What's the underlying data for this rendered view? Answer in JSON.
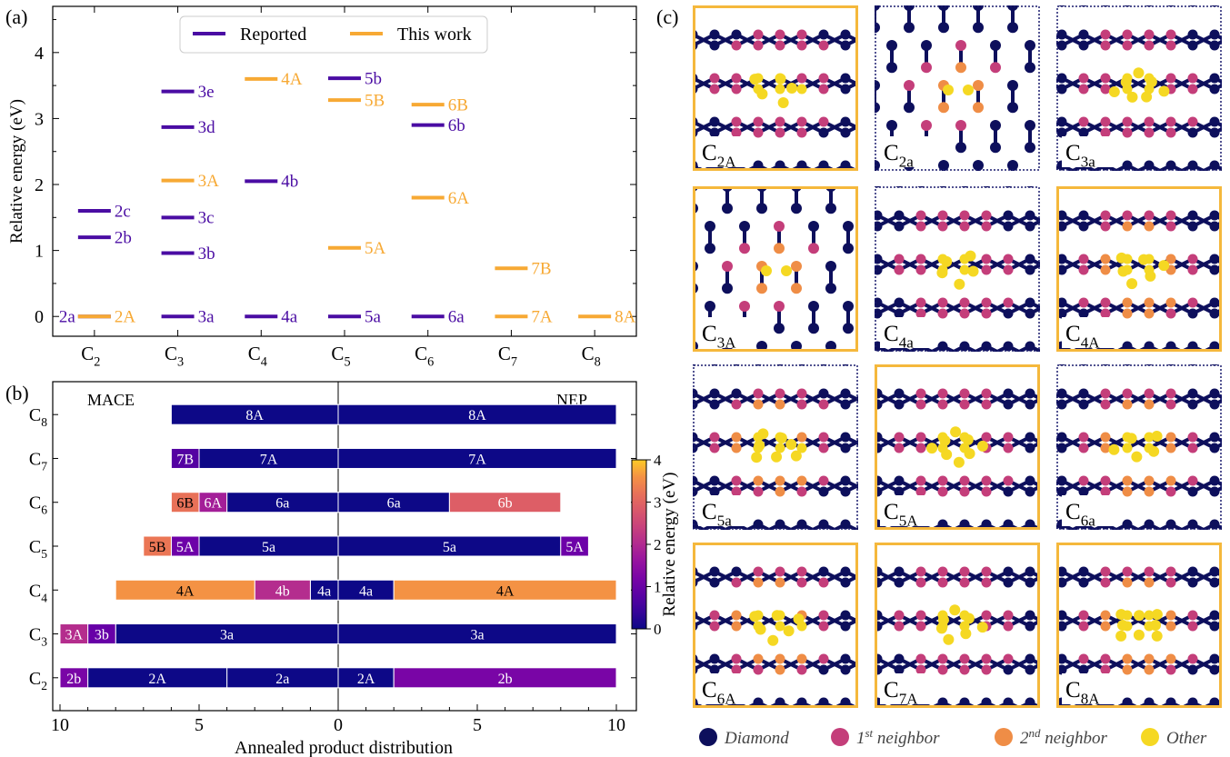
{
  "colors": {
    "reported": "#4a0ca3",
    "this_work": "#f7a934",
    "diamond": "#0d0f5c",
    "first_neighbor": "#c43e7a",
    "second_neighbor": "#ef8d46",
    "other": "#f5d823",
    "frame_this_work": "#f5b83c",
    "frame_reported": "#1a1c6e"
  },
  "panel_labels": {
    "a": "(a)",
    "b": "(b)",
    "c": "(c)"
  },
  "chart_data": [
    {
      "type": "scatter",
      "panel": "(a)",
      "ylabel": "Relative energy (eV)",
      "categories": [
        "C2",
        "C3",
        "C4",
        "C5",
        "C6",
        "C7",
        "C8"
      ],
      "category_labels": [
        [
          "C",
          "2"
        ],
        [
          "C",
          "3"
        ],
        [
          "C",
          "4"
        ],
        [
          "C",
          "5"
        ],
        [
          "C",
          "6"
        ],
        [
          "C",
          "7"
        ],
        [
          "C",
          "8"
        ]
      ],
      "ylim": [
        -0.3,
        4.7
      ],
      "yticks": [
        0,
        1,
        2,
        3,
        4
      ],
      "legend": {
        "placement": "top-center",
        "entries": [
          "Reported",
          "This work"
        ]
      },
      "series": [
        {
          "name": "Reported",
          "points": [
            {
              "x": "C2",
              "y": 0.0,
              "label": "2a"
            },
            {
              "x": "C2",
              "y": 1.2,
              "label": "2b"
            },
            {
              "x": "C2",
              "y": 1.6,
              "label": "2c"
            },
            {
              "x": "C3",
              "y": 0.0,
              "label": "3a"
            },
            {
              "x": "C3",
              "y": 0.96,
              "label": "3b"
            },
            {
              "x": "C3",
              "y": 1.5,
              "label": "3c"
            },
            {
              "x": "C3",
              "y": 2.87,
              "label": "3d"
            },
            {
              "x": "C3",
              "y": 3.41,
              "label": "3e"
            },
            {
              "x": "C4",
              "y": 0.0,
              "label": "4a"
            },
            {
              "x": "C4",
              "y": 2.05,
              "label": "4b"
            },
            {
              "x": "C5",
              "y": 0.0,
              "label": "5a"
            },
            {
              "x": "C5",
              "y": 3.61,
              "label": "5b"
            },
            {
              "x": "C6",
              "y": 0.0,
              "label": "6a"
            },
            {
              "x": "C6",
              "y": 2.9,
              "label": "6b"
            }
          ]
        },
        {
          "name": "This work",
          "points": [
            {
              "x": "C2",
              "y": 0.0,
              "label": "2A"
            },
            {
              "x": "C3",
              "y": 2.06,
              "label": "3A"
            },
            {
              "x": "C4",
              "y": 3.6,
              "label": "4A"
            },
            {
              "x": "C5",
              "y": 1.04,
              "label": "5A"
            },
            {
              "x": "C5",
              "y": 3.28,
              "label": "5B"
            },
            {
              "x": "C6",
              "y": 1.8,
              "label": "6A"
            },
            {
              "x": "C6",
              "y": 3.21,
              "label": "6B"
            },
            {
              "x": "C7",
              "y": 0.0,
              "label": "7A"
            },
            {
              "x": "C7",
              "y": 0.73,
              "label": "7B"
            },
            {
              "x": "C8",
              "y": 0.0,
              "label": "8A"
            }
          ]
        }
      ]
    },
    {
      "type": "bar",
      "panel": "(b)",
      "xlabel": "Annealed product distribution",
      "xticks": [
        10,
        5,
        0,
        5,
        10
      ],
      "left_title": "MACE",
      "right_title": "NEP",
      "colorbar": {
        "label": "Relative energy (eV)",
        "range": [
          0,
          4
        ],
        "ticks": [
          0,
          1,
          2,
          3,
          4
        ]
      },
      "rows": [
        {
          "category": [
            "C",
            "8"
          ],
          "mace": [
            {
              "label": "8A",
              "count": 6,
              "energy": 0.0
            }
          ],
          "nep": [
            {
              "label": "8A",
              "count": 10,
              "energy": 0.0
            }
          ]
        },
        {
          "category": [
            "C",
            "7"
          ],
          "mace": [
            {
              "label": "7A",
              "count": 5,
              "energy": 0.0
            },
            {
              "label": "7B",
              "count": 1,
              "energy": 0.73
            }
          ],
          "nep": [
            {
              "label": "7A",
              "count": 10,
              "energy": 0.0
            }
          ]
        },
        {
          "category": [
            "C",
            "6"
          ],
          "mace": [
            {
              "label": "6a",
              "count": 4,
              "energy": 0.0
            },
            {
              "label": "6A",
              "count": 1,
              "energy": 1.8
            },
            {
              "label": "6B",
              "count": 1,
              "energy": 3.21
            }
          ],
          "nep": [
            {
              "label": "6a",
              "count": 4,
              "energy": 0.0
            },
            {
              "label": "6b",
              "count": 4,
              "energy": 2.9
            }
          ]
        },
        {
          "category": [
            "C",
            "5"
          ],
          "mace": [
            {
              "label": "5a",
              "count": 5,
              "energy": 0.0
            },
            {
              "label": "5A",
              "count": 1,
              "energy": 1.04
            },
            {
              "label": "5B",
              "count": 1,
              "energy": 3.28
            }
          ],
          "nep": [
            {
              "label": "5a",
              "count": 8,
              "energy": 0.0
            },
            {
              "label": "5A",
              "count": 1,
              "energy": 1.04
            }
          ]
        },
        {
          "category": [
            "C",
            "4"
          ],
          "mace": [
            {
              "label": "4a",
              "count": 1,
              "energy": 0.0
            },
            {
              "label": "4b",
              "count": 2,
              "energy": 2.05
            },
            {
              "label": "4A",
              "count": 5,
              "energy": 3.6
            }
          ],
          "nep": [
            {
              "label": "4a",
              "count": 2,
              "energy": 0.0
            },
            {
              "label": "4A",
              "count": 8,
              "energy": 3.6
            }
          ]
        },
        {
          "category": [
            "C",
            "3"
          ],
          "mace": [
            {
              "label": "3a",
              "count": 8,
              "energy": 0.0
            },
            {
              "label": "3b",
              "count": 1,
              "energy": 0.96
            },
            {
              "label": "3A",
              "count": 1,
              "energy": 2.06
            }
          ],
          "nep": [
            {
              "label": "3a",
              "count": 10,
              "energy": 0.0
            }
          ]
        },
        {
          "category": [
            "C",
            "2"
          ],
          "mace": [
            {
              "label": "2a",
              "count": 4,
              "energy": 0.0
            },
            {
              "label": "2A",
              "count": 5,
              "energy": 0.0
            },
            {
              "label": "2b",
              "count": 1,
              "energy": 1.2
            }
          ],
          "nep": [
            {
              "label": "2A",
              "count": 2,
              "energy": 0.0
            },
            {
              "label": "2b",
              "count": 8,
              "energy": 1.2
            }
          ]
        }
      ]
    }
  ],
  "structures": [
    {
      "base": "C",
      "sub": "2A",
      "frame": "this_work",
      "lattice": "diamond"
    },
    {
      "base": "C",
      "sub": "2a",
      "frame": "reported",
      "lattice": "hex"
    },
    {
      "base": "C",
      "sub": "3a",
      "frame": "reported",
      "lattice": "diamond"
    },
    {
      "base": "C",
      "sub": "3A",
      "frame": "this_work",
      "lattice": "hex"
    },
    {
      "base": "C",
      "sub": "4a",
      "frame": "reported",
      "lattice": "diamond"
    },
    {
      "base": "C",
      "sub": "4A",
      "frame": "this_work",
      "lattice": "diamond"
    },
    {
      "base": "C",
      "sub": "5a",
      "frame": "reported",
      "lattice": "diamond"
    },
    {
      "base": "C",
      "sub": "5A",
      "frame": "this_work",
      "lattice": "diamond"
    },
    {
      "base": "C",
      "sub": "6a",
      "frame": "reported",
      "lattice": "diamond"
    },
    {
      "base": "C",
      "sub": "6A",
      "frame": "this_work",
      "lattice": "diamond"
    },
    {
      "base": "C",
      "sub": "7A",
      "frame": "this_work",
      "lattice": "diamond"
    },
    {
      "base": "C",
      "sub": "8A",
      "frame": "this_work",
      "lattice": "diamond"
    }
  ],
  "atom_legend": [
    {
      "label": "Diamond",
      "color_key": "diamond"
    },
    {
      "label": "1st neighbor",
      "color_key": "first_neighbor",
      "pre": "1",
      "sup": "st",
      "post": " neighbor"
    },
    {
      "label": "2nd neighbor",
      "color_key": "second_neighbor",
      "pre": "2",
      "sup": "nd",
      "post": " neighbor"
    },
    {
      "label": "Other",
      "color_key": "other"
    }
  ]
}
